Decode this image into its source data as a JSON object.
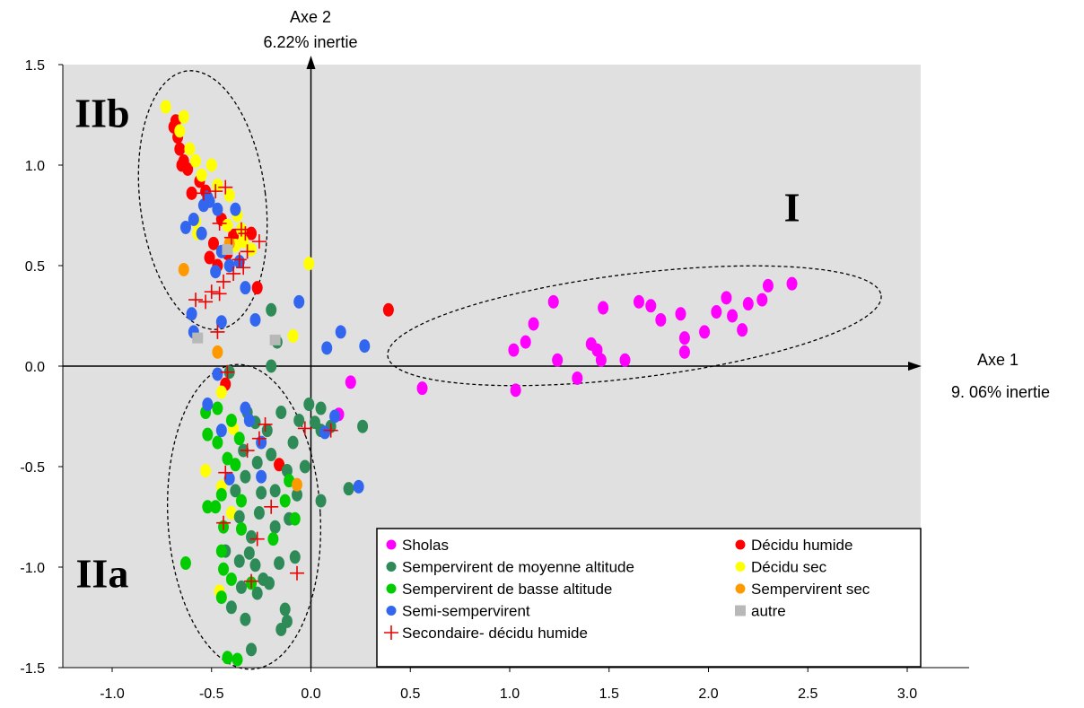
{
  "chart_data": {
    "type": "scatter",
    "xlim": [
      -1.0,
      3.0
    ],
    "ylim": [
      -1.5,
      1.5
    ],
    "x_ticks": [
      "-1.0",
      "-0.5",
      "0.0",
      "0.5",
      "1.0",
      "1.5",
      "2.0",
      "2.5",
      "3.0"
    ],
    "y_ticks": [
      "1.5",
      "1.0",
      "0.5",
      "0.0",
      "-0.5",
      "-1.0",
      "-1.5"
    ],
    "axis1_label": [
      "Axe 1",
      "9. 06% inertie"
    ],
    "axis2_label": [
      "Axe 2",
      "6.22% inertie"
    ],
    "group_labels": [
      {
        "text": "I",
        "x": 2.42,
        "y": 0.72
      },
      {
        "text": "IIb",
        "x": -1.05,
        "y": 1.19
      },
      {
        "text": "IIa",
        "x": -1.05,
        "y": -1.1
      }
    ],
    "grid": false,
    "plot_background": "#e0e0e0",
    "legend_position": "bottom-right",
    "series": [
      {
        "name": "Sholas",
        "marker": "circle",
        "color": "#ff00ff",
        "points": [
          [
            0.56,
            -0.11
          ],
          [
            1.02,
            0.08
          ],
          [
            1.03,
            -0.12
          ],
          [
            1.08,
            0.12
          ],
          [
            1.12,
            0.21
          ],
          [
            1.22,
            0.32
          ],
          [
            1.24,
            0.03
          ],
          [
            1.34,
            -0.06
          ],
          [
            1.41,
            0.11
          ],
          [
            1.44,
            0.08
          ],
          [
            1.46,
            0.03
          ],
          [
            1.47,
            0.29
          ],
          [
            1.58,
            0.03
          ],
          [
            1.65,
            0.32
          ],
          [
            1.71,
            0.3
          ],
          [
            1.76,
            0.23
          ],
          [
            1.86,
            0.26
          ],
          [
            1.88,
            0.14
          ],
          [
            1.88,
            0.07
          ],
          [
            1.98,
            0.17
          ],
          [
            2.04,
            0.27
          ],
          [
            2.09,
            0.34
          ],
          [
            2.12,
            0.25
          ],
          [
            2.17,
            0.18
          ],
          [
            2.2,
            0.31
          ],
          [
            2.27,
            0.33
          ],
          [
            2.3,
            0.4
          ],
          [
            2.42,
            0.41
          ],
          [
            0.2,
            -0.08
          ],
          [
            0.14,
            -0.24
          ]
        ]
      },
      {
        "name": "Décidu humide",
        "marker": "circle",
        "color": "#ff0000",
        "points": [
          [
            -0.68,
            1.22
          ],
          [
            -0.67,
            1.14
          ],
          [
            -0.66,
            1.08
          ],
          [
            -0.64,
            1.02
          ],
          [
            -0.62,
            0.98
          ],
          [
            -0.6,
            0.86
          ],
          [
            -0.56,
            0.92
          ],
          [
            -0.53,
            0.87
          ],
          [
            -0.49,
            0.61
          ],
          [
            -0.51,
            0.54
          ],
          [
            -0.47,
            0.5
          ],
          [
            -0.45,
            0.73
          ],
          [
            -0.42,
            0.56
          ],
          [
            -0.39,
            0.65
          ],
          [
            -0.3,
            0.66
          ],
          [
            -0.27,
            0.39
          ],
          [
            0.39,
            0.28
          ],
          [
            -0.43,
            -0.09
          ],
          [
            -0.16,
            -0.49
          ],
          [
            -0.69,
            1.19
          ],
          [
            -0.65,
            1.0
          ]
        ]
      },
      {
        "name": "Décidu sec",
        "marker": "circle",
        "color": "#ffff00",
        "points": [
          [
            -0.73,
            1.29
          ],
          [
            -0.64,
            1.24
          ],
          [
            -0.66,
            1.17
          ],
          [
            -0.61,
            1.08
          ],
          [
            -0.58,
            1.02
          ],
          [
            -0.55,
            0.95
          ],
          [
            -0.5,
            1.0
          ],
          [
            -0.47,
            0.9
          ],
          [
            -0.41,
            0.85
          ],
          [
            -0.37,
            0.75
          ],
          [
            -0.35,
            0.68
          ],
          [
            -0.34,
            0.62
          ],
          [
            -0.38,
            0.6
          ],
          [
            -0.42,
            0.7
          ],
          [
            -0.57,
            0.66
          ],
          [
            -0.58,
            0.72
          ],
          [
            -0.3,
            0.58
          ],
          [
            -0.01,
            0.51
          ],
          [
            -0.09,
            0.15
          ],
          [
            -0.45,
            -0.13
          ],
          [
            -0.39,
            -0.31
          ],
          [
            -0.53,
            -0.52
          ],
          [
            -0.45,
            -0.6
          ],
          [
            -0.4,
            -0.73
          ],
          [
            -0.46,
            -1.12
          ]
        ]
      },
      {
        "name": "Sempervirent de moyenne altitude",
        "marker": "circle",
        "color": "#2e8b57",
        "points": [
          [
            -0.32,
            -0.23
          ],
          [
            -0.28,
            -0.28
          ],
          [
            -0.22,
            -0.32
          ],
          [
            -0.15,
            -0.23
          ],
          [
            -0.06,
            -0.27
          ],
          [
            -0.01,
            -0.19
          ],
          [
            0.02,
            -0.28
          ],
          [
            0.05,
            -0.32
          ],
          [
            0.1,
            -0.3
          ],
          [
            0.26,
            -0.3
          ],
          [
            -0.34,
            -0.42
          ],
          [
            -0.27,
            -0.48
          ],
          [
            -0.2,
            -0.44
          ],
          [
            -0.12,
            -0.52
          ],
          [
            -0.09,
            -0.38
          ],
          [
            -0.03,
            -0.5
          ],
          [
            0.05,
            -0.67
          ],
          [
            0.19,
            -0.61
          ],
          [
            -0.38,
            -0.62
          ],
          [
            -0.33,
            -0.55
          ],
          [
            -0.25,
            -0.63
          ],
          [
            -0.18,
            -0.62
          ],
          [
            -0.07,
            -0.64
          ],
          [
            -0.36,
            -0.75
          ],
          [
            -0.3,
            -0.85
          ],
          [
            -0.26,
            -0.73
          ],
          [
            -0.18,
            -0.8
          ],
          [
            -0.11,
            -0.76
          ],
          [
            -0.43,
            -0.92
          ],
          [
            -0.36,
            -0.97
          ],
          [
            -0.31,
            -0.93
          ],
          [
            -0.28,
            -0.99
          ],
          [
            -0.24,
            -1.06
          ],
          [
            -0.16,
            -0.98
          ],
          [
            -0.08,
            -0.95
          ],
          [
            -0.35,
            -1.1
          ],
          [
            -0.27,
            -1.13
          ],
          [
            -0.21,
            -1.08
          ],
          [
            -0.13,
            -1.21
          ],
          [
            -0.12,
            -1.27
          ],
          [
            -0.15,
            -1.31
          ],
          [
            -0.33,
            -1.26
          ],
          [
            -0.4,
            -1.2
          ],
          [
            -0.3,
            -1.41
          ],
          [
            -0.2,
            0.28
          ],
          [
            -0.17,
            0.12
          ],
          [
            -0.2,
            0.0
          ],
          [
            -0.41,
            -0.03
          ],
          [
            0.05,
            -0.21
          ]
        ]
      },
      {
        "name": "Sempervirent de basse altitude",
        "marker": "circle",
        "color": "#00cc00",
        "points": [
          [
            -0.53,
            -0.23
          ],
          [
            -0.47,
            -0.21
          ],
          [
            -0.4,
            -0.27
          ],
          [
            -0.36,
            -0.36
          ],
          [
            -0.47,
            -0.38
          ],
          [
            -0.42,
            -0.46
          ],
          [
            -0.38,
            -0.49
          ],
          [
            -0.45,
            -0.64
          ],
          [
            -0.48,
            -0.7
          ],
          [
            -0.52,
            -0.7
          ],
          [
            -0.35,
            -0.67
          ],
          [
            -0.11,
            -0.57
          ],
          [
            -0.13,
            -0.67
          ],
          [
            -0.44,
            -0.8
          ],
          [
            -0.35,
            -0.81
          ],
          [
            -0.45,
            -0.92
          ],
          [
            -0.63,
            -0.98
          ],
          [
            -0.44,
            -1.01
          ],
          [
            -0.4,
            -1.06
          ],
          [
            -0.3,
            -1.08
          ],
          [
            -0.45,
            -1.15
          ],
          [
            -0.42,
            -1.45
          ],
          [
            -0.19,
            -0.86
          ],
          [
            -0.08,
            -0.76
          ],
          [
            -0.52,
            -0.34
          ],
          [
            -0.37,
            -1.46
          ]
        ]
      },
      {
        "name": "Semi-sempervirent",
        "marker": "circle",
        "color": "#3366ee",
        "points": [
          [
            -0.54,
            0.8
          ],
          [
            -0.51,
            0.82
          ],
          [
            -0.52,
            0.84
          ],
          [
            -0.59,
            0.73
          ],
          [
            -0.63,
            0.69
          ],
          [
            -0.55,
            0.66
          ],
          [
            -0.47,
            0.78
          ],
          [
            -0.45,
            0.57
          ],
          [
            -0.48,
            0.47
          ],
          [
            -0.41,
            0.5
          ],
          [
            -0.36,
            0.52
          ],
          [
            -0.33,
            0.39
          ],
          [
            -0.6,
            0.26
          ],
          [
            -0.59,
            0.17
          ],
          [
            -0.45,
            0.22
          ],
          [
            -0.28,
            0.23
          ],
          [
            -0.06,
            0.32
          ],
          [
            0.08,
            0.09
          ],
          [
            0.15,
            0.17
          ],
          [
            0.27,
            0.1
          ],
          [
            -0.47,
            -0.04
          ],
          [
            -0.52,
            -0.19
          ],
          [
            -0.45,
            -0.32
          ],
          [
            -0.31,
            -0.27
          ],
          [
            -0.25,
            -0.38
          ],
          [
            -0.25,
            -0.55
          ],
          [
            0.12,
            -0.25
          ],
          [
            0.24,
            -0.6
          ],
          [
            -0.41,
            -0.56
          ],
          [
            0.07,
            -0.33
          ],
          [
            -0.33,
            -0.21
          ],
          [
            -0.38,
            0.78
          ]
        ]
      },
      {
        "name": "Sempervirent sec",
        "marker": "circle",
        "color": "#ff9900",
        "points": [
          [
            -0.64,
            0.48
          ],
          [
            -0.47,
            0.07
          ],
          [
            -0.07,
            -0.59
          ],
          [
            -0.41,
            0.61
          ]
        ]
      },
      {
        "name": "autre",
        "marker": "square",
        "color": "#b8b8b8",
        "points": [
          [
            -0.57,
            0.14
          ],
          [
            -0.18,
            0.13
          ],
          [
            -0.42,
            0.58
          ]
        ]
      },
      {
        "name": "Secondaire- décidu humide",
        "marker": "plus",
        "color": "#ee0000",
        "points": [
          [
            -0.54,
            0.86
          ],
          [
            -0.48,
            0.87
          ],
          [
            -0.43,
            0.89
          ],
          [
            -0.46,
            0.71
          ],
          [
            -0.4,
            0.64
          ],
          [
            -0.32,
            0.57
          ],
          [
            -0.36,
            0.53
          ],
          [
            -0.39,
            0.46
          ],
          [
            -0.34,
            0.49
          ],
          [
            -0.44,
            0.42
          ],
          [
            -0.46,
            0.36
          ],
          [
            -0.5,
            0.37
          ],
          [
            -0.53,
            0.32
          ],
          [
            -0.58,
            0.33
          ],
          [
            -0.26,
            0.62
          ],
          [
            -0.33,
            0.66
          ],
          [
            -0.35,
            0.68
          ],
          [
            -0.47,
            0.17
          ],
          [
            -0.42,
            -0.03
          ],
          [
            -0.32,
            -0.42
          ],
          [
            -0.26,
            -0.36
          ],
          [
            -0.23,
            -0.29
          ],
          [
            -0.43,
            -0.53
          ],
          [
            -0.2,
            -0.7
          ],
          [
            -0.27,
            -0.86
          ],
          [
            -0.3,
            -1.07
          ],
          [
            -0.07,
            -1.03
          ],
          [
            -0.03,
            -0.31
          ],
          [
            0.1,
            -0.32
          ],
          [
            -0.44,
            -0.78
          ]
        ]
      }
    ]
  }
}
